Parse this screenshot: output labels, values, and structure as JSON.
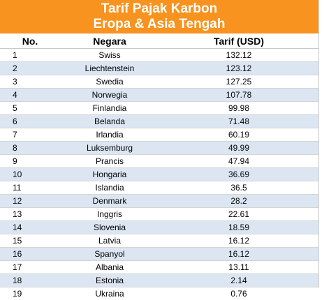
{
  "title": {
    "line1": "Tarif Pajak Karbon",
    "line2": "Eropa & Asia Tengah"
  },
  "headers": {
    "no": "No.",
    "country": "Negara",
    "rate": "Tarif (USD)"
  },
  "rows": [
    {
      "no": "1",
      "country": "Swiss",
      "rate": "132.12"
    },
    {
      "no": "2",
      "country": "Liechtenstein",
      "rate": "123.12"
    },
    {
      "no": "3",
      "country": "Swedia",
      "rate": "127.25"
    },
    {
      "no": "4",
      "country": "Norwegia",
      "rate": "107.78"
    },
    {
      "no": "5",
      "country": "Finlandia",
      "rate": "99.98"
    },
    {
      "no": "6",
      "country": "Belanda",
      "rate": "71.48"
    },
    {
      "no": "7",
      "country": "Irlandia",
      "rate": "60.19"
    },
    {
      "no": "8",
      "country": "Luksemburg",
      "rate": "49.99"
    },
    {
      "no": "9",
      "country": "Prancis",
      "rate": "47.94"
    },
    {
      "no": "10",
      "country": "Hongaria",
      "rate": "36.69"
    },
    {
      "no": "11",
      "country": "Islandia",
      "rate": "36.5"
    },
    {
      "no": "12",
      "country": "Denmark",
      "rate": "28.2"
    },
    {
      "no": "13",
      "country": "Inggris",
      "rate": "22.61"
    },
    {
      "no": "14",
      "country": "Slovenia",
      "rate": "18.59"
    },
    {
      "no": "15",
      "country": "Latvia",
      "rate": "16.12"
    },
    {
      "no": "16",
      "country": "Spanyol",
      "rate": "16.12"
    },
    {
      "no": "17",
      "country": "Albania",
      "rate": "13.11"
    },
    {
      "no": "18",
      "country": "Estonia",
      "rate": "2.14"
    },
    {
      "no": "19",
      "country": "Ukraina",
      "rate": "0.76"
    }
  ],
  "colors": {
    "title_bg": "#f7931e",
    "stripe": "#dce6f3"
  }
}
